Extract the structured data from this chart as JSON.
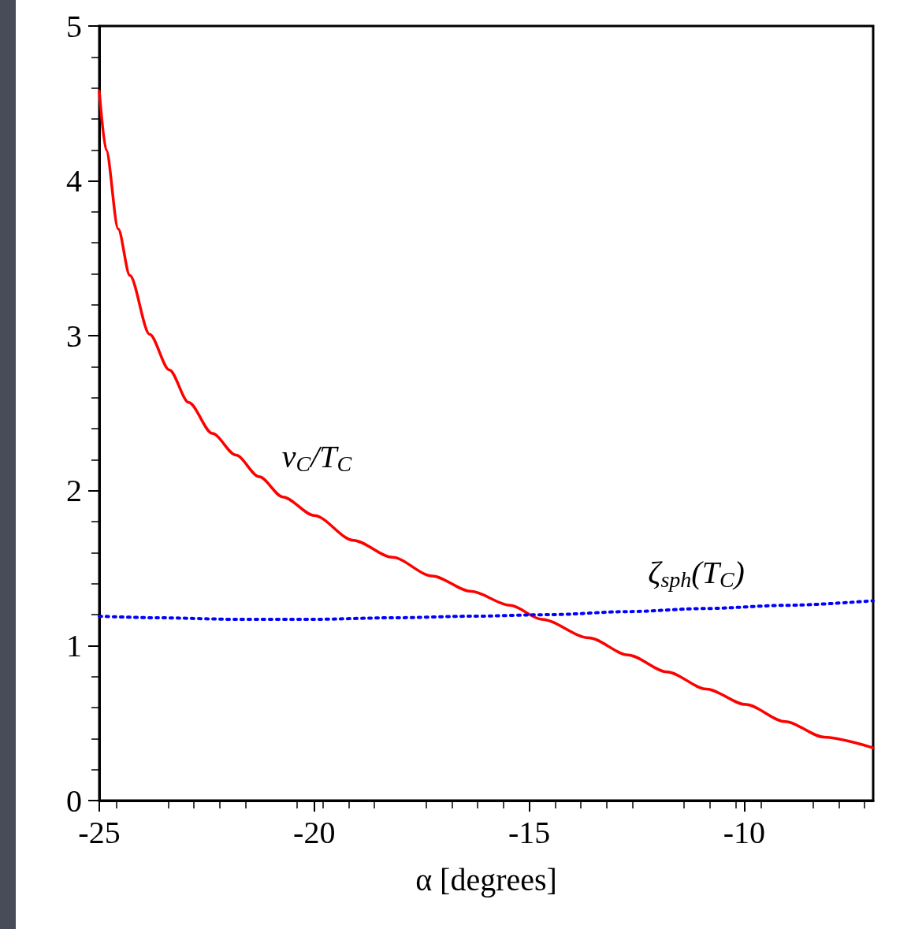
{
  "chart_data": {
    "type": "line",
    "xlabel": "α [degrees]",
    "xlim": [
      -25,
      -7
    ],
    "xticks": [
      -25,
      -20,
      -15,
      -10
    ],
    "ylim": [
      0,
      5
    ],
    "yticks": [
      0,
      1,
      2,
      3,
      4,
      5
    ],
    "grid": false,
    "marker": "none",
    "series": [
      {
        "name": "v$_{C}$/T$_{C}$",
        "color": "#ff0000",
        "line_style": "solid",
        "x": [
          -25,
          -24.84,
          -24.56,
          -24.29,
          -23.83,
          -23.37,
          -22.92,
          -22.37,
          -21.82,
          -21.28,
          -20.73,
          -20.0,
          -19.09,
          -18.18,
          -17.26,
          -16.35,
          -15.44,
          -14.71,
          -13.61,
          -12.7,
          -11.79,
          -10.88,
          -9.96,
          -9.05,
          -8.14,
          -7
        ],
        "values": [
          4.58,
          4.2,
          3.69,
          3.39,
          3.01,
          2.78,
          2.57,
          2.37,
          2.23,
          2.09,
          1.96,
          1.84,
          1.68,
          1.57,
          1.45,
          1.35,
          1.26,
          1.17,
          1.05,
          0.94,
          0.83,
          0.72,
          0.62,
          0.51,
          0.41,
          0.34
        ]
      },
      {
        "name": "ζ$_{sph}$(T$_{C}$)",
        "color": "#0000ff",
        "line_style": "dotted",
        "x": [
          -25,
          -23.65,
          -21.82,
          -20,
          -18.18,
          -16.35,
          -14.53,
          -12.7,
          -10.88,
          -9.05,
          -7
        ],
        "values": [
          1.19,
          1.18,
          1.17,
          1.17,
          1.18,
          1.19,
          1.2,
          1.22,
          1.24,
          1.26,
          1.29
        ]
      }
    ]
  }
}
